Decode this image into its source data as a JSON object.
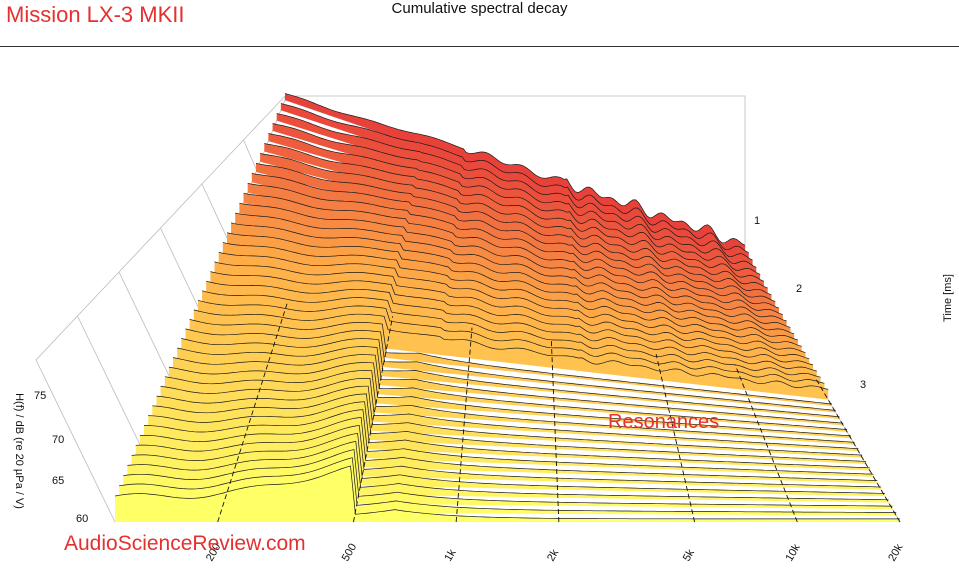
{
  "header": {
    "brand": "Mission LX-3 MKII",
    "chart_title": "Cumulative spectral decay"
  },
  "watermark": "AudioScienceReview.com",
  "colors": {
    "brand_red": "#e53030",
    "front_slice": "#ffff66",
    "back_slice": "#e8413a"
  },
  "chart_data": {
    "type": "waterfall",
    "title": "Cumulative spectral decay",
    "xlabel": "",
    "ylabel": "H(f) / dB (re 20 µPa / V)",
    "zlabel": "Time [ms]",
    "x_scale": "log",
    "x_ticks": [
      {
        "value": 200,
        "label": "200"
      },
      {
        "value": 500,
        "label": "500"
      },
      {
        "value": 1000,
        "label": "1k"
      },
      {
        "value": 2000,
        "label": "2k"
      },
      {
        "value": 5000,
        "label": "5k"
      },
      {
        "value": 10000,
        "label": "10k"
      },
      {
        "value": 20000,
        "label": "20k"
      }
    ],
    "xlim": [
      100,
      20000
    ],
    "y_ticks": [
      "60",
      "65",
      "70",
      "75"
    ],
    "ylim": [
      58,
      78
    ],
    "time_ticks": [
      "1",
      "2",
      "3"
    ],
    "timelim": [
      0,
      4
    ],
    "slice_count": 42,
    "annotation": "Resonances"
  }
}
